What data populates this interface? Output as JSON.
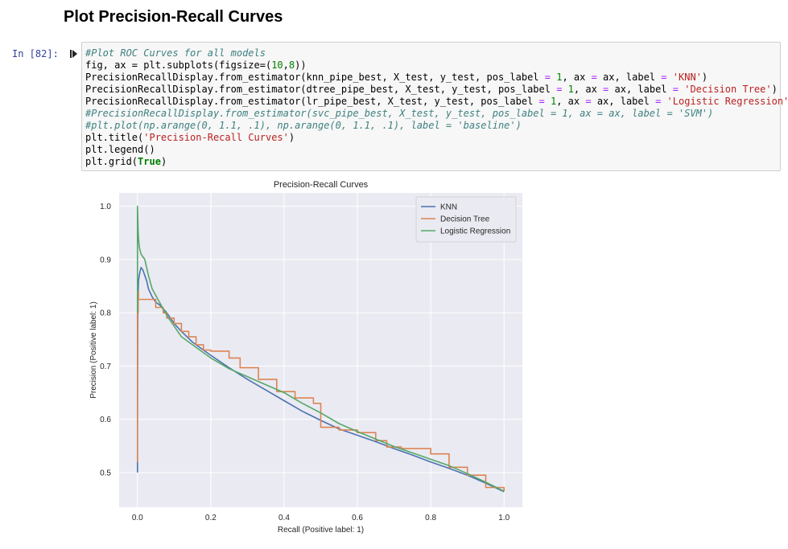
{
  "heading": "Plot Precision-Recall Curves",
  "cell": {
    "prompt": "In [82]:",
    "code": [
      [
        {
          "t": "#Plot ROC Curves for all models",
          "c": "c-com"
        }
      ],
      [
        {
          "t": "fig, ax = plt.subplots(figsize=(",
          "c": "c-fn"
        },
        {
          "t": "10",
          "c": "c-num"
        },
        {
          "t": ",",
          "c": "c-fn"
        },
        {
          "t": "8",
          "c": "c-num"
        },
        {
          "t": "))",
          "c": "c-fn"
        }
      ],
      [
        {
          "t": "PrecisionRecallDisplay.from_estimator(knn_pipe_best, X_test, y_test, pos_label ",
          "c": "c-fn"
        },
        {
          "t": "=",
          "c": "c-op"
        },
        {
          "t": " ",
          "c": "c-fn"
        },
        {
          "t": "1",
          "c": "c-num"
        },
        {
          "t": ", ax ",
          "c": "c-fn"
        },
        {
          "t": "=",
          "c": "c-op"
        },
        {
          "t": " ax, label ",
          "c": "c-fn"
        },
        {
          "t": "=",
          "c": "c-op"
        },
        {
          "t": " ",
          "c": "c-fn"
        },
        {
          "t": "'KNN'",
          "c": "c-str"
        },
        {
          "t": ")",
          "c": "c-fn"
        }
      ],
      [
        {
          "t": "PrecisionRecallDisplay.from_estimator(dtree_pipe_best, X_test, y_test, pos_label ",
          "c": "c-fn"
        },
        {
          "t": "=",
          "c": "c-op"
        },
        {
          "t": " ",
          "c": "c-fn"
        },
        {
          "t": "1",
          "c": "c-num"
        },
        {
          "t": ", ax ",
          "c": "c-fn"
        },
        {
          "t": "=",
          "c": "c-op"
        },
        {
          "t": " ax, label ",
          "c": "c-fn"
        },
        {
          "t": "=",
          "c": "c-op"
        },
        {
          "t": " ",
          "c": "c-fn"
        },
        {
          "t": "'Decision Tree'",
          "c": "c-str"
        },
        {
          "t": ")",
          "c": "c-fn"
        }
      ],
      [
        {
          "t": "PrecisionRecallDisplay.from_estimator(lr_pipe_best, X_test, y_test, pos_label ",
          "c": "c-fn"
        },
        {
          "t": "=",
          "c": "c-op"
        },
        {
          "t": " ",
          "c": "c-fn"
        },
        {
          "t": "1",
          "c": "c-num"
        },
        {
          "t": ", ax ",
          "c": "c-fn"
        },
        {
          "t": "=",
          "c": "c-op"
        },
        {
          "t": " ax, label ",
          "c": "c-fn"
        },
        {
          "t": "=",
          "c": "c-op"
        },
        {
          "t": " ",
          "c": "c-fn"
        },
        {
          "t": "'Logistic Regression'",
          "c": "c-str"
        },
        {
          "t": ")",
          "c": "c-fn"
        }
      ],
      [
        {
          "t": "#PrecisionRecallDisplay.from_estimator(svc_pipe_best, X_test, y_test, pos_label = 1, ax = ax, label = 'SVM')",
          "c": "c-com"
        }
      ],
      [
        {
          "t": "#plt.plot(np.arange(0, 1.1, .1), np.arange(0, 1.1, .1), label = 'baseline')",
          "c": "c-com"
        }
      ],
      [
        {
          "t": "plt.title(",
          "c": "c-fn"
        },
        {
          "t": "'Precision-Recall Curves'",
          "c": "c-str"
        },
        {
          "t": ")",
          "c": "c-fn"
        }
      ],
      [
        {
          "t": "plt.legend()",
          "c": "c-fn"
        }
      ],
      [
        {
          "t": "plt.grid(",
          "c": "c-fn"
        },
        {
          "t": "True",
          "c": "c-kw"
        },
        {
          "t": ")",
          "c": "c-fn"
        }
      ]
    ]
  },
  "chart_data": {
    "type": "line",
    "title": "Precision-Recall Curves",
    "xlabel": "Recall (Positive label: 1)",
    "ylabel": "Precision (Positive label: 1)",
    "xlim": [
      -0.05,
      1.05
    ],
    "ylim": [
      0.435,
      1.025
    ],
    "xticks": [
      "0.0",
      "0.2",
      "0.4",
      "0.6",
      "0.8",
      "1.0"
    ],
    "yticks": [
      "0.5",
      "0.6",
      "0.7",
      "0.8",
      "0.9",
      "1.0"
    ],
    "grid": true,
    "legend_position": "top-right",
    "background": "#eaeaf2",
    "series": [
      {
        "name": "KNN",
        "color": "#4c72b0",
        "step": false,
        "x": [
          0.0,
          0.0,
          0.001,
          0.002,
          0.003,
          0.005,
          0.008,
          0.01,
          0.015,
          0.02,
          0.025,
          0.03,
          0.04,
          0.05,
          0.06,
          0.08,
          0.1,
          0.12,
          0.15,
          0.2,
          0.25,
          0.3,
          0.35,
          0.4,
          0.45,
          0.5,
          0.55,
          0.6,
          0.65,
          0.7,
          0.75,
          0.8,
          0.85,
          0.9,
          0.95,
          1.0
        ],
        "y": [
          0.5,
          0.6,
          0.8,
          0.84,
          0.86,
          0.87,
          0.88,
          0.885,
          0.88,
          0.87,
          0.86,
          0.845,
          0.83,
          0.82,
          0.815,
          0.8,
          0.78,
          0.765,
          0.745,
          0.72,
          0.697,
          0.675,
          0.655,
          0.635,
          0.615,
          0.598,
          0.582,
          0.57,
          0.558,
          0.545,
          0.533,
          0.52,
          0.508,
          0.495,
          0.48,
          0.464
        ]
      },
      {
        "name": "Decision Tree",
        "color": "#dd8452",
        "step": true,
        "x": [
          0.0,
          0.0,
          0.002,
          0.003,
          0.03,
          0.05,
          0.07,
          0.08,
          0.1,
          0.12,
          0.14,
          0.16,
          0.18,
          0.2,
          0.25,
          0.28,
          0.33,
          0.38,
          0.43,
          0.48,
          0.5,
          0.55,
          0.6,
          0.65,
          0.68,
          0.72,
          0.8,
          0.85,
          0.9,
          0.95,
          1.0
        ],
        "y": [
          0.52,
          0.8,
          0.84,
          0.825,
          0.825,
          0.81,
          0.8,
          0.79,
          0.78,
          0.765,
          0.755,
          0.74,
          0.73,
          0.728,
          0.715,
          0.697,
          0.675,
          0.652,
          0.64,
          0.63,
          0.585,
          0.58,
          0.575,
          0.56,
          0.548,
          0.545,
          0.535,
          0.51,
          0.495,
          0.472,
          0.465
        ]
      },
      {
        "name": "Logistic Regression",
        "color": "#55a868",
        "step": false,
        "x": [
          0.0,
          0.0,
          0.002,
          0.004,
          0.006,
          0.01,
          0.015,
          0.02,
          0.03,
          0.04,
          0.06,
          0.08,
          0.1,
          0.12,
          0.15,
          0.2,
          0.25,
          0.3,
          0.35,
          0.4,
          0.45,
          0.5,
          0.55,
          0.6,
          0.65,
          0.7,
          0.75,
          0.8,
          0.85,
          0.9,
          0.95,
          1.0
        ],
        "y": [
          0.8,
          1.0,
          0.95,
          0.93,
          0.92,
          0.91,
          0.905,
          0.9,
          0.87,
          0.845,
          0.82,
          0.795,
          0.775,
          0.755,
          0.74,
          0.715,
          0.695,
          0.68,
          0.665,
          0.65,
          0.63,
          0.612,
          0.592,
          0.577,
          0.563,
          0.549,
          0.537,
          0.525,
          0.513,
          0.498,
          0.482,
          0.465
        ]
      }
    ]
  }
}
